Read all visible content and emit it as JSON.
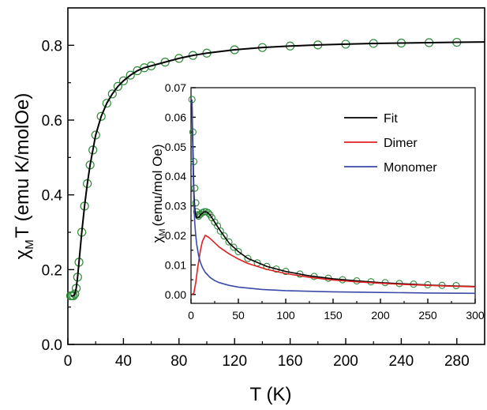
{
  "chart_data": [
    {
      "type": "scatter",
      "panel": "main",
      "xlabel": "T (K)",
      "ylabel_main": "χ",
      "ylabel_sub": "M",
      "ylabel_rest": "T (emu K/molOe)",
      "xlim": [
        0,
        300
      ],
      "ylim": [
        0.0,
        0.9
      ],
      "xticks": [
        "0",
        "40",
        "80",
        "120",
        "160",
        "200",
        "240",
        "280"
      ],
      "yticks": [
        "0.0",
        "0.2",
        "0.4",
        "0.6",
        "0.8"
      ],
      "grid": false,
      "colors": {
        "data": "#2e8b3a",
        "fit": "#000000"
      },
      "series": [
        {
          "marker": "open-circle",
          "x": [
            2,
            3,
            4,
            5,
            6,
            7,
            8,
            10,
            12,
            14,
            16,
            18,
            20,
            24,
            28,
            32,
            36,
            40,
            45,
            50,
            55,
            60,
            70,
            80,
            90,
            100,
            120,
            140,
            160,
            180,
            200,
            220,
            240,
            260,
            280
          ],
          "y": [
            0.13,
            0.13,
            0.13,
            0.135,
            0.15,
            0.18,
            0.22,
            0.3,
            0.37,
            0.43,
            0.48,
            0.52,
            0.56,
            0.61,
            0.645,
            0.67,
            0.69,
            0.705,
            0.72,
            0.732,
            0.74,
            0.745,
            0.755,
            0.765,
            0.773,
            0.779,
            0.788,
            0.794,
            0.798,
            0.801,
            0.803,
            0.805,
            0.806,
            0.807,
            0.808
          ]
        },
        {
          "marker": "line",
          "x": [
            2,
            3,
            4,
            5,
            6,
            7,
            8,
            10,
            12,
            14,
            16,
            18,
            20,
            24,
            28,
            32,
            36,
            40,
            45,
            50,
            55,
            60,
            70,
            80,
            90,
            100,
            120,
            140,
            160,
            180,
            200,
            220,
            240,
            260,
            280,
            300
          ],
          "y": [
            0.13,
            0.13,
            0.13,
            0.135,
            0.15,
            0.18,
            0.22,
            0.3,
            0.37,
            0.43,
            0.48,
            0.52,
            0.56,
            0.61,
            0.645,
            0.67,
            0.69,
            0.705,
            0.72,
            0.732,
            0.74,
            0.745,
            0.755,
            0.765,
            0.773,
            0.779,
            0.788,
            0.794,
            0.798,
            0.801,
            0.803,
            0.805,
            0.806,
            0.807,
            0.808,
            0.809
          ]
        }
      ]
    },
    {
      "type": "line",
      "panel": "inset",
      "ylabel_main": "χ",
      "ylabel_sub": "M",
      "ylabel_rest": "(emu/mol Oe)",
      "xlim": [
        0,
        300
      ],
      "ylim": [
        -0.003,
        0.07
      ],
      "xticks": [
        "0",
        "50",
        "100",
        "150",
        "200",
        "250",
        "300"
      ],
      "yticks": [
        "0.00",
        "0.01",
        "0.02",
        "0.03",
        "0.04",
        "0.05",
        "0.06",
        "0.07"
      ],
      "legend_position": "top-right",
      "grid": false,
      "series": [
        {
          "name": "Fit",
          "color": "#000000",
          "x": [
            1,
            2,
            3,
            4,
            5,
            6,
            8,
            10,
            12,
            14,
            16,
            18,
            20,
            25,
            30,
            40,
            50,
            60,
            80,
            100,
            125,
            150,
            175,
            200,
            225,
            250,
            275,
            300
          ],
          "y": [
            0.065,
            0.05,
            0.035,
            0.029,
            0.027,
            0.026,
            0.026,
            0.027,
            0.0275,
            0.028,
            0.028,
            0.0275,
            0.027,
            0.0245,
            0.022,
            0.0175,
            0.0145,
            0.0122,
            0.0095,
            0.0078,
            0.0063,
            0.0053,
            0.0046,
            0.004,
            0.0036,
            0.0032,
            0.0029,
            0.0027
          ]
        },
        {
          "name": "Dimer",
          "color": "#e02020",
          "x": [
            1,
            3,
            5,
            7,
            10,
            12,
            15,
            18,
            20,
            25,
            30,
            40,
            50,
            60,
            80,
            100,
            125,
            150,
            175,
            200,
            225,
            250,
            275,
            300
          ],
          "y": [
            0.0,
            0.0005,
            0.004,
            0.009,
            0.015,
            0.018,
            0.02,
            0.0195,
            0.019,
            0.0175,
            0.016,
            0.0138,
            0.012,
            0.0105,
            0.0085,
            0.0071,
            0.0058,
            0.0049,
            0.0043,
            0.0038,
            0.0034,
            0.0031,
            0.0028,
            0.0026
          ]
        },
        {
          "name": "Monomer",
          "color": "#3a4aa8",
          "x": [
            1,
            2,
            3,
            4,
            5,
            6,
            8,
            10,
            12,
            15,
            20,
            25,
            30,
            40,
            50,
            75,
            100,
            150,
            200,
            250,
            300
          ],
          "y": [
            0.066,
            0.045,
            0.032,
            0.024,
            0.02,
            0.017,
            0.0132,
            0.0108,
            0.0092,
            0.0075,
            0.0058,
            0.0047,
            0.004,
            0.0031,
            0.0025,
            0.0017,
            0.0013,
            0.0009,
            0.0007,
            0.0005,
            0.0004
          ]
        },
        {
          "name": "",
          "marker": "open-circle",
          "color": "#2e8b3a",
          "x": [
            1,
            2,
            3,
            4,
            5,
            6,
            7,
            8,
            9,
            10,
            12,
            14,
            16,
            18,
            20,
            22,
            25,
            28,
            31,
            35,
            40,
            45,
            50,
            60,
            70,
            80,
            90,
            100,
            115,
            130,
            145,
            160,
            175,
            190,
            205,
            220,
            235,
            250,
            265,
            280
          ],
          "y": [
            0.066,
            0.055,
            0.045,
            0.036,
            0.031,
            0.028,
            0.027,
            0.0265,
            0.027,
            0.0272,
            0.0277,
            0.028,
            0.028,
            0.0277,
            0.027,
            0.026,
            0.0245,
            0.0232,
            0.0215,
            0.0198,
            0.0178,
            0.016,
            0.0145,
            0.0122,
            0.0107,
            0.0095,
            0.0086,
            0.0078,
            0.0069,
            0.0061,
            0.0055,
            0.005,
            0.0046,
            0.0043,
            0.004,
            0.0037,
            0.0035,
            0.0033,
            0.0031,
            0.003
          ]
        }
      ]
    }
  ]
}
